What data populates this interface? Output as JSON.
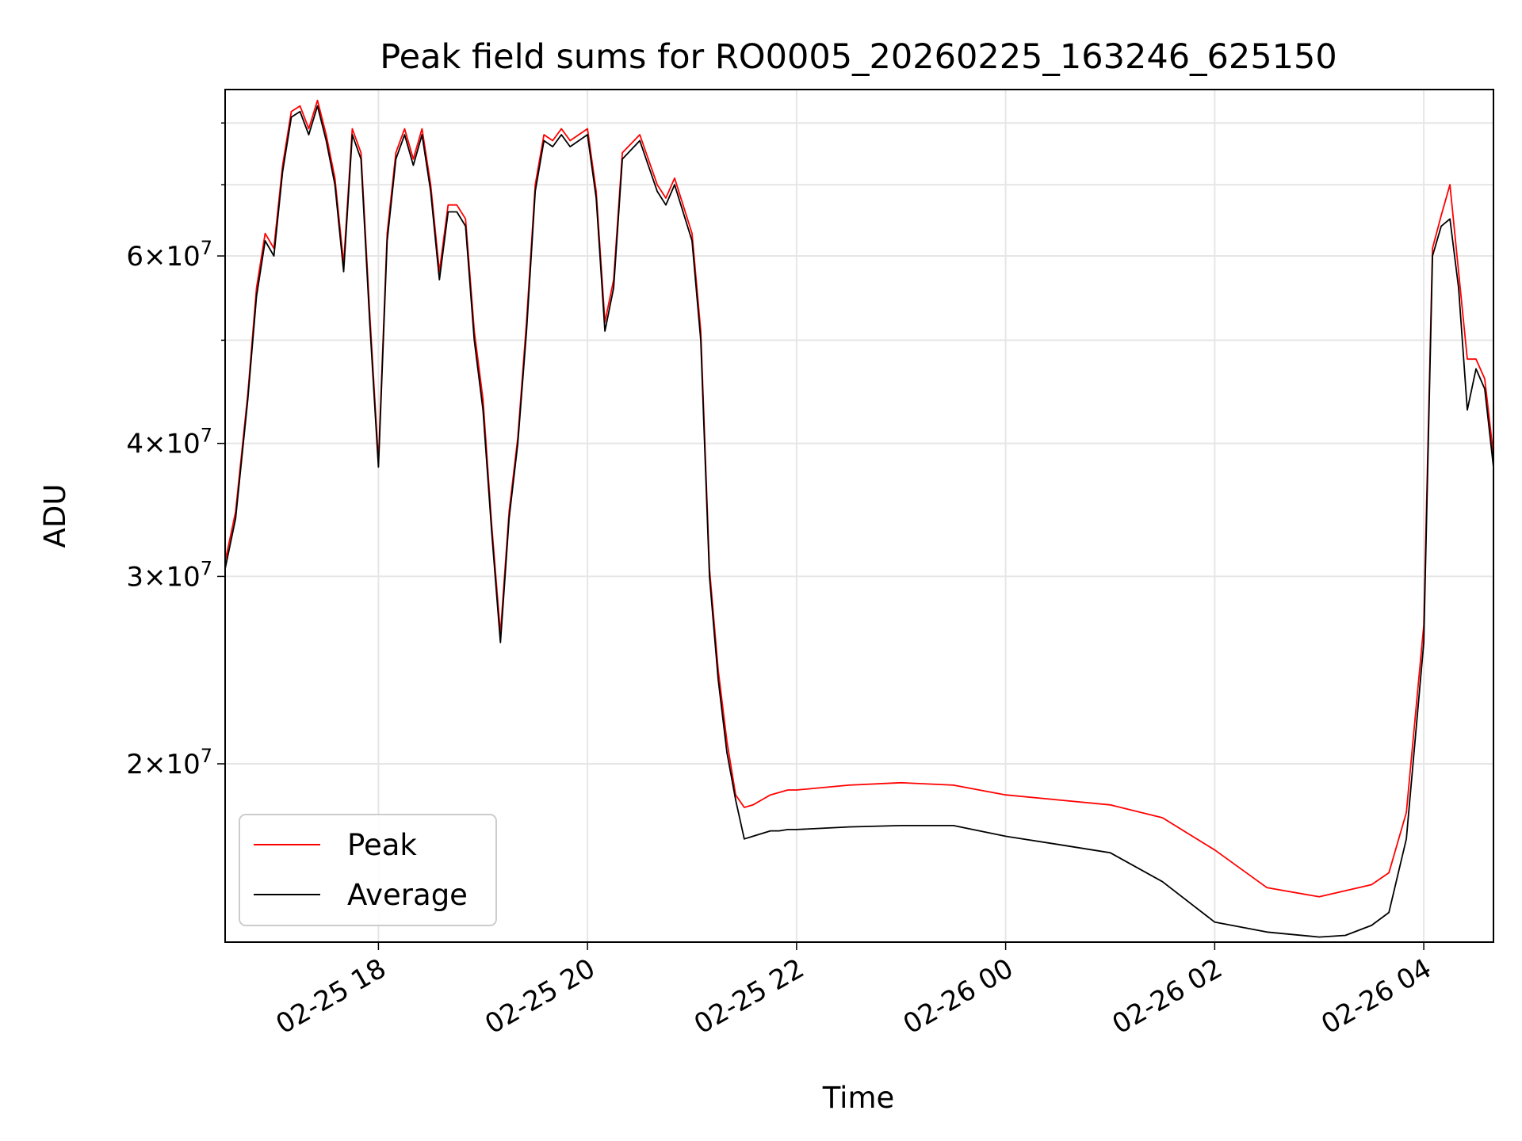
{
  "chart_data": {
    "type": "line",
    "title": "Peak field sums for RO0005_20260225_163246_625150",
    "xlabel": "Time",
    "ylabel": "ADU",
    "x_ticks": [
      "02-25 18",
      "02-25 20",
      "02-25 22",
      "02-26 00",
      "02-26 02",
      "02-26 04"
    ],
    "y_tick_mantissas": [
      "2",
      "3",
      "4",
      "6"
    ],
    "y_tick_base": "10",
    "y_tick_exponent": "7",
    "y_scale": "log",
    "ylim": [
      13600000,
      86000000
    ],
    "xlim": [
      "2026-02-25 16:32",
      "2026-02-26 04:40"
    ],
    "grid": true,
    "legend": {
      "location": "lower left",
      "entries": [
        "Peak",
        "Average"
      ]
    },
    "colors": {
      "Peak": "#ff0000",
      "Average": "#000000"
    },
    "series": [
      {
        "name": "Average",
        "x": [
          "2026-02-25 16:32",
          "2026-02-25 16:38",
          "2026-02-25 16:45",
          "2026-02-25 16:50",
          "2026-02-25 16:55",
          "2026-02-25 17:00",
          "2026-02-25 17:05",
          "2026-02-25 17:10",
          "2026-02-25 17:15",
          "2026-02-25 17:20",
          "2026-02-25 17:25",
          "2026-02-25 17:30",
          "2026-02-25 17:35",
          "2026-02-25 17:40",
          "2026-02-25 17:45",
          "2026-02-25 17:50",
          "2026-02-25 17:55",
          "2026-02-25 18:00",
          "2026-02-25 18:05",
          "2026-02-25 18:10",
          "2026-02-25 18:15",
          "2026-02-25 18:20",
          "2026-02-25 18:25",
          "2026-02-25 18:30",
          "2026-02-25 18:35",
          "2026-02-25 18:40",
          "2026-02-25 18:45",
          "2026-02-25 18:50",
          "2026-02-25 18:55",
          "2026-02-25 19:00",
          "2026-02-25 19:05",
          "2026-02-25 19:10",
          "2026-02-25 19:15",
          "2026-02-25 19:20",
          "2026-02-25 19:25",
          "2026-02-25 19:30",
          "2026-02-25 19:35",
          "2026-02-25 19:40",
          "2026-02-25 19:45",
          "2026-02-25 19:50",
          "2026-02-25 20:00",
          "2026-02-25 20:05",
          "2026-02-25 20:10",
          "2026-02-25 20:15",
          "2026-02-25 20:20",
          "2026-02-25 20:30",
          "2026-02-25 20:40",
          "2026-02-25 20:45",
          "2026-02-25 20:50",
          "2026-02-25 21:00",
          "2026-02-25 21:05",
          "2026-02-25 21:10",
          "2026-02-25 21:15",
          "2026-02-25 21:20",
          "2026-02-25 21:25",
          "2026-02-25 21:30",
          "2026-02-25 21:35",
          "2026-02-25 21:40",
          "2026-02-25 21:45",
          "2026-02-25 21:50",
          "2026-02-25 21:55",
          "2026-02-25 22:00",
          "2026-02-25 22:30",
          "2026-02-25 23:00",
          "2026-02-25 23:30",
          "2026-02-26 00:00",
          "2026-02-26 00:30",
          "2026-02-26 01:00",
          "2026-02-26 01:30",
          "2026-02-26 02:00",
          "2026-02-26 02:30",
          "2026-02-26 03:00",
          "2026-02-26 03:15",
          "2026-02-26 03:30",
          "2026-02-26 03:40",
          "2026-02-26 03:50",
          "2026-02-26 04:00",
          "2026-02-26 04:05",
          "2026-02-26 04:10",
          "2026-02-26 04:15",
          "2026-02-26 04:20",
          "2026-02-26 04:25",
          "2026-02-26 04:30",
          "2026-02-26 04:35",
          "2026-02-26 04:40"
        ],
        "y": [
          30500000,
          34000000,
          44000000,
          55000000,
          62000000,
          60000000,
          72000000,
          81000000,
          82000000,
          78000000,
          83000000,
          77000000,
          70000000,
          58000000,
          78000000,
          74000000,
          52000000,
          38000000,
          62000000,
          74000000,
          78000000,
          73000000,
          78000000,
          69000000,
          57000000,
          66000000,
          66000000,
          64000000,
          50000000,
          43000000,
          33000000,
          26000000,
          34000000,
          40000000,
          51000000,
          69000000,
          77000000,
          76000000,
          78000000,
          76000000,
          78000000,
          68000000,
          51000000,
          56000000,
          74000000,
          77000000,
          69000000,
          67000000,
          70000000,
          62000000,
          50000000,
          30000000,
          24000000,
          20500000,
          18500000,
          17000000,
          17100000,
          17200000,
          17300000,
          17300000,
          17350000,
          17350000,
          17450000,
          17500000,
          17500000,
          17100000,
          16800000,
          16500000,
          15500000,
          14200000,
          13900000,
          13750000,
          13800000,
          14100000,
          14500000,
          17000000,
          26000000,
          60000000,
          64000000,
          65000000,
          56000000,
          43000000,
          47000000,
          45000000,
          38000000
        ]
      },
      {
        "name": "Peak",
        "x": [
          "2026-02-25 16:32",
          "2026-02-25 16:38",
          "2026-02-25 16:45",
          "2026-02-25 16:50",
          "2026-02-25 16:55",
          "2026-02-25 17:00",
          "2026-02-25 17:05",
          "2026-02-25 17:10",
          "2026-02-25 17:15",
          "2026-02-25 17:20",
          "2026-02-25 17:25",
          "2026-02-25 17:30",
          "2026-02-25 17:35",
          "2026-02-25 17:40",
          "2026-02-25 17:45",
          "2026-02-25 17:50",
          "2026-02-25 17:55",
          "2026-02-25 18:00",
          "2026-02-25 18:05",
          "2026-02-25 18:10",
          "2026-02-25 18:15",
          "2026-02-25 18:20",
          "2026-02-25 18:25",
          "2026-02-25 18:30",
          "2026-02-25 18:35",
          "2026-02-25 18:40",
          "2026-02-25 18:45",
          "2026-02-25 18:50",
          "2026-02-25 18:55",
          "2026-02-25 19:00",
          "2026-02-25 19:05",
          "2026-02-25 19:10",
          "2026-02-25 19:15",
          "2026-02-25 19:20",
          "2026-02-25 19:25",
          "2026-02-25 19:30",
          "2026-02-25 19:35",
          "2026-02-25 19:40",
          "2026-02-25 19:45",
          "2026-02-25 19:50",
          "2026-02-25 20:00",
          "2026-02-25 20:05",
          "2026-02-25 20:10",
          "2026-02-25 20:15",
          "2026-02-25 20:20",
          "2026-02-25 20:30",
          "2026-02-25 20:40",
          "2026-02-25 20:45",
          "2026-02-25 20:50",
          "2026-02-25 21:00",
          "2026-02-25 21:05",
          "2026-02-25 21:10",
          "2026-02-25 21:15",
          "2026-02-25 21:20",
          "2026-02-25 21:25",
          "2026-02-25 21:30",
          "2026-02-25 21:35",
          "2026-02-25 21:40",
          "2026-02-25 21:45",
          "2026-02-25 21:50",
          "2026-02-25 21:55",
          "2026-02-25 22:00",
          "2026-02-25 22:30",
          "2026-02-25 23:00",
          "2026-02-25 23:30",
          "2026-02-26 00:00",
          "2026-02-26 00:30",
          "2026-02-26 01:00",
          "2026-02-26 01:30",
          "2026-02-26 02:00",
          "2026-02-26 02:30",
          "2026-02-26 03:00",
          "2026-02-26 03:15",
          "2026-02-26 03:30",
          "2026-02-26 03:40",
          "2026-02-26 03:50",
          "2026-02-26 04:00",
          "2026-02-26 04:05",
          "2026-02-26 04:10",
          "2026-02-26 04:15",
          "2026-02-26 04:20",
          "2026-02-26 04:25",
          "2026-02-26 04:30",
          "2026-02-26 04:35",
          "2026-02-26 04:40"
        ],
        "y": [
          31000000,
          34500000,
          44500000,
          56000000,
          63000000,
          61000000,
          73000000,
          82000000,
          83000000,
          79000000,
          84000000,
          78000000,
          71000000,
          59000000,
          79000000,
          75000000,
          53000000,
          38500000,
          63000000,
          75000000,
          79000000,
          74000000,
          79000000,
          70000000,
          58000000,
          67000000,
          67000000,
          65000000,
          51000000,
          44000000,
          33500000,
          26500000,
          34500000,
          40500000,
          52000000,
          70000000,
          78000000,
          77000000,
          79000000,
          77000000,
          79000000,
          69000000,
          52000000,
          57000000,
          75000000,
          78000000,
          70000000,
          68000000,
          71000000,
          63000000,
          51000000,
          30500000,
          24500000,
          21000000,
          18700000,
          18200000,
          18300000,
          18500000,
          18700000,
          18800000,
          18900000,
          18900000,
          19100000,
          19200000,
          19100000,
          18700000,
          18500000,
          18300000,
          17800000,
          16600000,
          15300000,
          15000000,
          15200000,
          15400000,
          15800000,
          18000000,
          27000000,
          61000000,
          65500000,
          70000000,
          58000000,
          48000000,
          48000000,
          46000000,
          39000000
        ]
      }
    ]
  }
}
